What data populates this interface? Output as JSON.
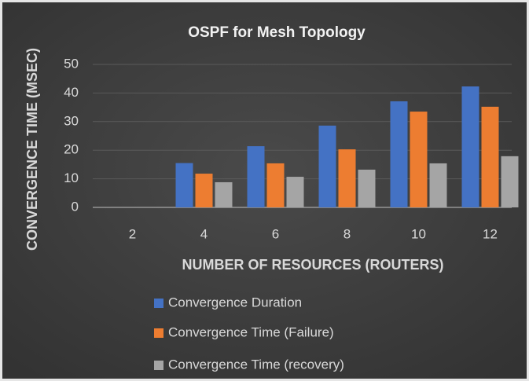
{
  "chart_data": {
    "type": "bar",
    "title": "OSPF for Mesh Topology",
    "x_label": "NUMBER OF RESOURCES (ROUTERS)",
    "y_label": "CONVERGENCE TIME (MSEC)",
    "categories": [
      "2",
      "4",
      "6",
      "8",
      "10",
      "12"
    ],
    "series": [
      {
        "name": "Convergence Duration",
        "color": "#4472c4",
        "values": [
          0,
          15.5,
          21.4,
          28.6,
          37.1,
          42.3
        ]
      },
      {
        "name": "Convergence Time (Failure)",
        "color": "#ed7d31",
        "values": [
          0,
          11.8,
          15.4,
          20.3,
          33.5,
          35.2
        ]
      },
      {
        "name": "Convergence Time (recovery)",
        "color": "#a5a5a5",
        "values": [
          0,
          8.8,
          10.7,
          13.2,
          15.4,
          17.9
        ]
      }
    ],
    "ylim": [
      0,
      50
    ],
    "yticks": [
      0,
      10,
      20,
      30,
      40,
      50
    ],
    "grid": true,
    "legend": "bottom"
  }
}
